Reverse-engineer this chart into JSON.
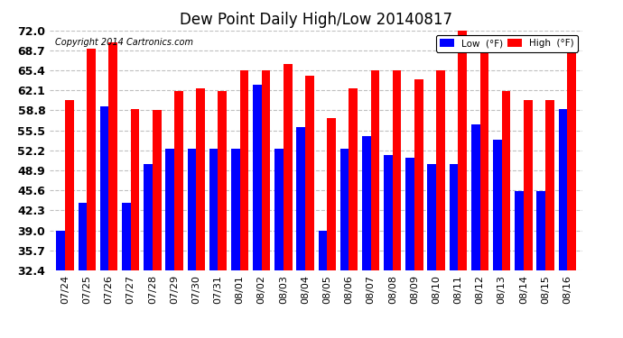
{
  "title": "Dew Point Daily High/Low 20140817",
  "copyright": "Copyright 2014 Cartronics.com",
  "dates": [
    "07/24",
    "07/25",
    "07/26",
    "07/27",
    "07/28",
    "07/29",
    "07/30",
    "07/31",
    "08/01",
    "08/02",
    "08/03",
    "08/04",
    "08/05",
    "08/06",
    "08/07",
    "08/08",
    "08/09",
    "08/10",
    "08/11",
    "08/12",
    "08/13",
    "08/14",
    "08/15",
    "08/16"
  ],
  "low": [
    39.0,
    43.5,
    59.5,
    43.5,
    50.0,
    52.5,
    52.5,
    52.5,
    52.5,
    63.0,
    52.5,
    56.0,
    39.0,
    52.5,
    54.5,
    51.5,
    51.0,
    50.0,
    50.0,
    56.5,
    54.0,
    45.5,
    45.5,
    59.0
  ],
  "high": [
    60.5,
    69.0,
    70.0,
    59.0,
    58.8,
    62.0,
    62.5,
    62.0,
    65.4,
    65.4,
    66.5,
    64.5,
    57.5,
    62.5,
    65.4,
    65.4,
    64.0,
    65.4,
    72.0,
    68.5,
    62.0,
    60.5,
    60.5,
    68.5
  ],
  "ymin": 32.4,
  "ylim": [
    32.4,
    72.0
  ],
  "yticks": [
    32.4,
    35.7,
    39.0,
    42.3,
    45.6,
    48.9,
    52.2,
    55.5,
    58.8,
    62.1,
    65.4,
    68.7,
    72.0
  ],
  "low_color": "#0000ff",
  "high_color": "#ff0000",
  "bg_color": "#ffffff",
  "grid_color": "#c0c0c0",
  "bar_width": 0.4,
  "legend_low_label": "Low  (°F)",
  "legend_high_label": "High  (°F)"
}
